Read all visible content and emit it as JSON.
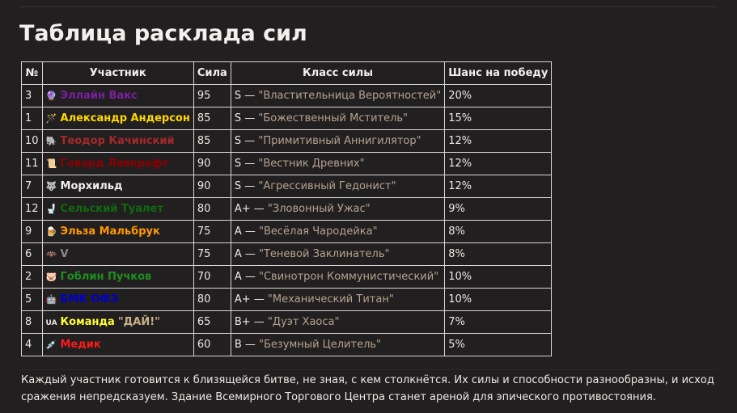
{
  "title": "Таблица расклада сил",
  "headers": [
    "№",
    "Участник",
    "Сила",
    "Класс силы",
    "Шанс на победу"
  ],
  "rows": [
    {
      "num": "3",
      "icon": "🔮",
      "icon_name": "crystal-ball-icon",
      "name": "Эллайн Вакс",
      "color": "#7b1fa2",
      "power": "95",
      "tier": "S",
      "class": "\"Властительница Вероятностей\"",
      "chance": "20%"
    },
    {
      "num": "1",
      "icon": "🪄",
      "icon_name": "magic-wand-icon",
      "name": "Александр Андерсон",
      "color": "#ffd800",
      "power": "85",
      "tier": "S",
      "class": "\"Божественный Мститель\"",
      "chance": "15%"
    },
    {
      "num": "10",
      "icon": "🐘",
      "icon_name": "elephant-icon",
      "name": "Теодор Качинский",
      "color": "#a52a2a",
      "power": "85",
      "tier": "S",
      "class": "\"Примитивный Аннигилятор\"",
      "chance": "12%"
    },
    {
      "num": "11",
      "icon": "📜",
      "icon_name": "scroll-icon",
      "name": "Говард Лавкрафт",
      "color": "#8b0000",
      "power": "90",
      "tier": "S",
      "class": "\"Вестник Древних\"",
      "chance": "12%"
    },
    {
      "num": "7",
      "icon": "🐺",
      "icon_name": "wolf-icon",
      "name": "Морхильд",
      "color": "#f2f0ee",
      "power": "90",
      "tier": "S",
      "class": "\"Агрессивный Гедонист\"",
      "chance": "12%"
    },
    {
      "num": "12",
      "icon": "🚽",
      "icon_name": "toilet-icon",
      "name": "Сельский Туалет",
      "color": "#0f6b0f",
      "power": "80",
      "tier": "A+",
      "class": "\"Зловонный Ужас\"",
      "chance": "9%"
    },
    {
      "num": "9",
      "icon": "🍺",
      "icon_name": "beer-icon",
      "name": "Эльза Мальбрук",
      "color": "#ff9800",
      "power": "75",
      "tier": "A",
      "class": "\"Весёлая Чародейка\"",
      "chance": "8%"
    },
    {
      "num": "6",
      "icon": "🦇",
      "icon_name": "bat-icon",
      "name": "V",
      "color": "#8a8a8a",
      "power": "75",
      "tier": "A",
      "class": "\"Теневой Заклинатель\"",
      "chance": "8%"
    },
    {
      "num": "2",
      "icon": "🐷",
      "icon_name": "pig-icon",
      "name": "Гоблин Пучков",
      "color": "#1e8f1e",
      "power": "70",
      "tier": "A",
      "class": "\"Свинотрон Коммунистический\"",
      "chance": "10%"
    },
    {
      "num": "5",
      "icon": "🤖",
      "icon_name": "robot-icon",
      "name": "БМК ОФЗ",
      "color": "#0000c8",
      "power": "80",
      "tier": "A+",
      "class": "\"Механический Титан\"",
      "chance": "10%"
    },
    {
      "num": "8",
      "icon": "UA",
      "icon_name": "ua-flag-icon",
      "name": "Команда",
      "name_tail": "\"ДАЙ!\"",
      "color": "#ffff33",
      "power": "65",
      "tier": "B+",
      "class": "\"Дуэт Хаоса\"",
      "chance": "7%"
    },
    {
      "num": "4",
      "icon": "💉",
      "icon_name": "syringe-icon",
      "name": "Медик",
      "color": "#ff1a1a",
      "power": "60",
      "tier": "B",
      "class": "\"Безумный Целитель\"",
      "chance": "5%"
    }
  ],
  "footer": "Каждый участник готовится к близящейся битве, не зная, с кем столкнётся. Их силы и способности разнообразны, и исход сражения непредсказуем. Здание Всемирного Торгового Центра станет ареной для эпического противостояния."
}
